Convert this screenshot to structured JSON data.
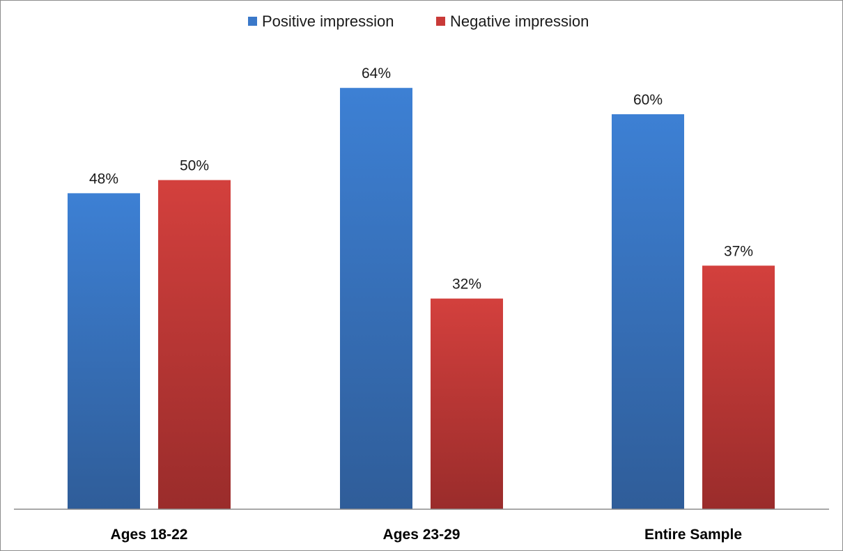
{
  "chart_data": {
    "type": "bar",
    "categories": [
      "Ages 18-22",
      "Ages 23-29",
      "Entire Sample"
    ],
    "series": [
      {
        "name": "Positive impression",
        "values": [
          48,
          64,
          60
        ],
        "labels": [
          "48%",
          "64%",
          "60%"
        ],
        "color": "#3a78c9"
      },
      {
        "name": "Negative impression",
        "values": [
          50,
          32,
          37
        ],
        "labels": [
          "50%",
          "32%",
          "37%"
        ],
        "color": "#c93a38"
      }
    ],
    "title": "",
    "xlabel": "",
    "ylabel": "",
    "ylim": [
      0,
      80
    ],
    "grid": false,
    "legend_position": "top-center"
  }
}
